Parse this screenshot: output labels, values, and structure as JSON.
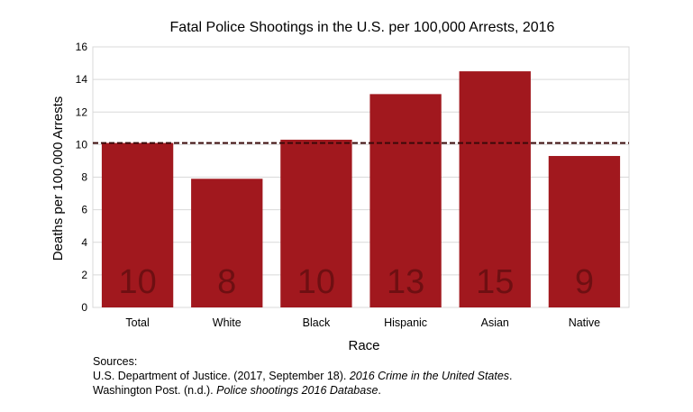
{
  "chart_data": {
    "type": "bar",
    "title": "Fatal Police Shootings in the U.S. per 100,000 Arrests, 2016",
    "xlabel": "Race",
    "ylabel": "Deaths per 100,000 Arrests",
    "categories": [
      "Total",
      "White",
      "Black",
      "Hispanic",
      "Asian",
      "Native"
    ],
    "values": [
      10.1,
      7.9,
      10.3,
      13.1,
      14.5,
      9.3
    ],
    "data_labels": [
      "10",
      "8",
      "10",
      "13",
      "15",
      "9"
    ],
    "reference_line": 10.1,
    "ylim": [
      0,
      16
    ],
    "yticks": [
      "0",
      "2",
      "4",
      "6",
      "8",
      "10",
      "12",
      "14",
      "16"
    ],
    "grid": true,
    "colors": {
      "bar": "#a1181e",
      "label": "#6e0f12",
      "reference": "#3a0a0a",
      "grid": "#d9d9d9"
    }
  },
  "sources": {
    "heading": "Sources:",
    "line1_prefix": "U.S. Department of Justice. (2017, September 18). ",
    "line1_title": "2016 Crime in the United States",
    "line1_suffix": ".",
    "line2_prefix": "Washington Post. (n.d.). ",
    "line2_title": "Police shootings 2016 Database",
    "line2_suffix": "."
  }
}
